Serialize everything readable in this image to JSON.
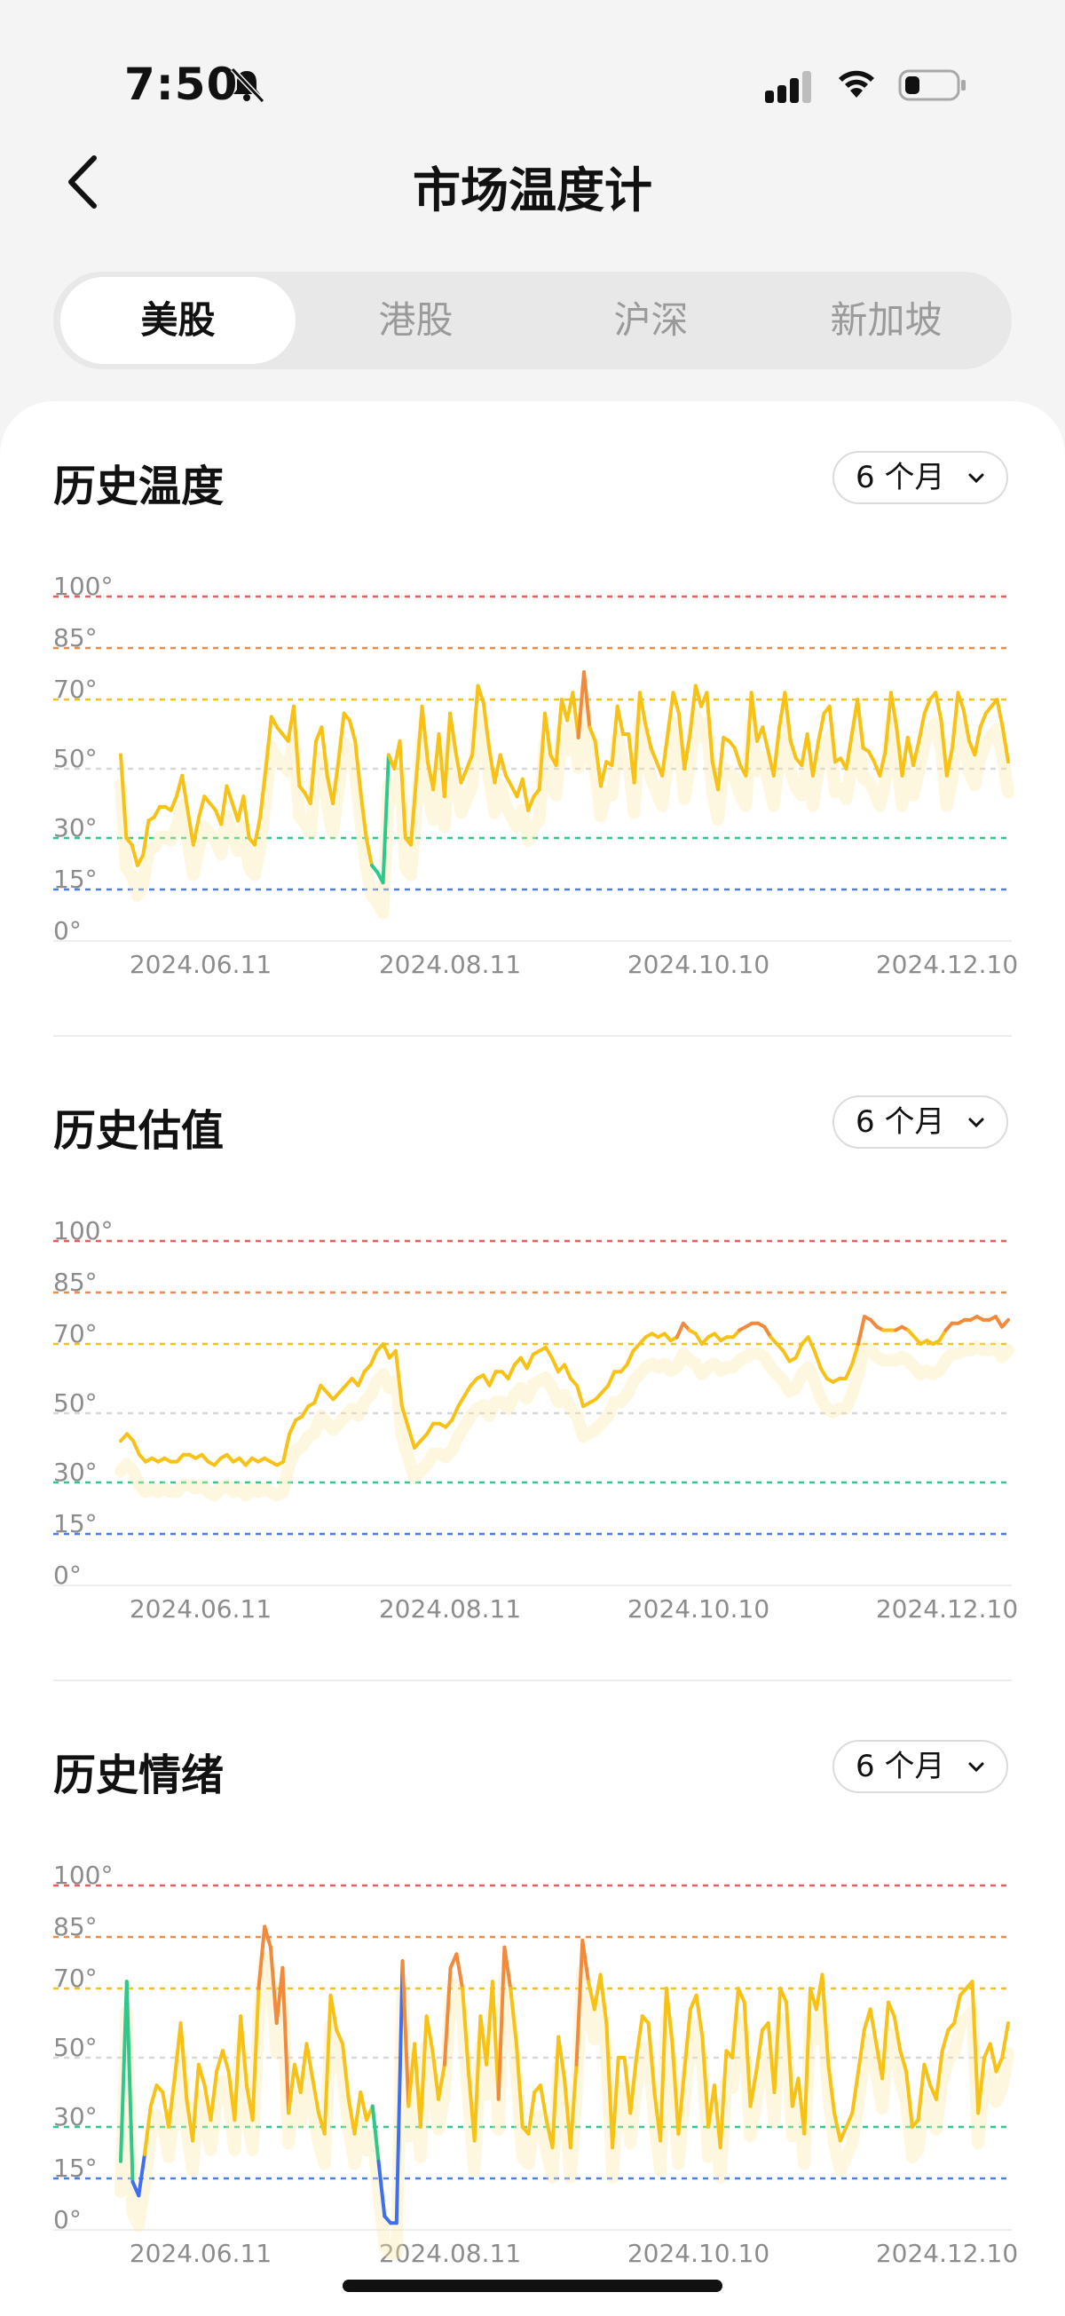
{
  "status": {
    "time": "7:50"
  },
  "nav": {
    "title": "市场温度计"
  },
  "tabs": [
    {
      "label": "美股",
      "active": true
    },
    {
      "label": "港股",
      "active": false
    },
    {
      "label": "沪深",
      "active": false
    },
    {
      "label": "新加坡",
      "active": false
    }
  ],
  "sections": [
    {
      "title": "历史温度",
      "period": "6 个月"
    },
    {
      "title": "历史估值",
      "period": "6 个月"
    },
    {
      "title": "历史情绪",
      "period": "6 个月"
    }
  ],
  "colors": {
    "level_100": "#f05a5a",
    "level_85": "#f0894a",
    "level_70": "#f2c21a",
    "level_50": "#d8d8d8",
    "level_30": "#2ec98a",
    "level_15": "#4a7cf0",
    "line_main": "#f7c215",
    "line_hot": "#f28a3c",
    "line_cold_green": "#2ec98a",
    "line_cold_blue": "#3f6ff0"
  },
  "chart_data": [
    {
      "type": "line",
      "title": "历史温度",
      "y_ticks": [
        "100°",
        "85°",
        "70°",
        "50°",
        "30°",
        "15°",
        "0°"
      ],
      "x_ticks": [
        "2024.06.11",
        "2024.08.11",
        "2024.10.10",
        "2024.12.10"
      ],
      "ylim": [
        0,
        100
      ],
      "reference_levels": [
        100,
        85,
        70,
        50,
        30,
        15
      ],
      "series": [
        {
          "values": [
            54,
            30,
            28,
            22,
            25,
            35,
            36,
            39,
            39,
            38,
            42,
            48,
            38,
            28,
            36,
            42,
            40,
            38,
            34,
            45,
            40,
            35,
            42,
            30,
            28,
            36,
            50,
            65,
            62,
            60,
            58,
            68,
            45,
            43,
            40,
            58,
            62,
            48,
            40,
            52,
            66,
            64,
            58,
            43,
            30,
            22,
            20,
            17,
            54,
            50,
            58,
            30,
            28,
            48,
            68,
            52,
            44,
            60,
            42,
            66,
            55,
            46,
            50,
            54,
            74,
            69,
            56,
            46,
            54,
            48,
            45,
            42,
            47,
            38,
            42,
            44,
            66,
            54,
            51,
            70,
            64,
            72,
            59,
            78,
            62,
            58,
            45,
            52,
            51,
            68,
            60,
            60,
            46,
            72,
            63,
            56,
            52,
            48,
            60,
            72,
            66,
            50,
            60,
            74,
            68,
            72,
            52,
            44,
            59,
            58,
            56,
            51,
            48,
            72,
            58,
            62,
            55,
            48,
            62,
            72,
            58,
            53,
            51,
            60,
            48,
            58,
            66,
            68,
            52,
            53,
            50,
            60,
            70,
            56,
            55,
            52,
            48,
            55,
            72,
            62,
            48,
            59,
            51,
            58,
            66,
            70,
            72,
            64,
            48,
            56,
            72,
            67,
            58,
            54,
            62,
            66,
            68,
            70,
            62,
            52
          ]
        }
      ]
    },
    {
      "type": "line",
      "title": "历史估值",
      "y_ticks": [
        "100°",
        "85°",
        "70°",
        "50°",
        "30°",
        "15°",
        "0°"
      ],
      "x_ticks": [
        "2024.06.11",
        "2024.08.11",
        "2024.10.10",
        "2024.12.10"
      ],
      "ylim": [
        0,
        100
      ],
      "reference_levels": [
        100,
        85,
        70,
        50,
        30,
        15
      ],
      "series": [
        {
          "values": [
            42,
            44,
            42,
            38,
            36,
            37,
            36,
            37,
            36,
            36,
            38,
            38,
            37,
            38,
            36,
            35,
            37,
            38,
            36,
            37,
            35,
            37,
            36,
            37,
            36,
            35,
            36,
            44,
            48,
            49,
            52,
            53,
            58,
            56,
            54,
            56,
            58,
            60,
            58,
            62,
            64,
            68,
            70,
            66,
            68,
            52,
            46,
            40,
            42,
            44,
            47,
            47,
            46,
            48,
            52,
            55,
            58,
            60,
            61,
            58,
            62,
            62,
            60,
            64,
            66,
            63,
            67,
            68,
            69,
            66,
            62,
            64,
            60,
            58,
            52,
            53,
            54,
            56,
            58,
            62,
            62,
            64,
            68,
            70,
            72,
            73,
            72,
            73,
            71,
            72,
            76,
            74,
            73,
            70,
            72,
            73,
            71,
            72,
            72,
            74,
            75,
            76,
            76,
            75,
            72,
            70,
            68,
            65,
            66,
            70,
            72,
            68,
            63,
            60,
            59,
            60,
            60,
            64,
            70,
            78,
            77,
            75,
            74,
            74,
            74,
            75,
            74,
            72,
            70,
            71,
            70,
            71,
            74,
            76,
            76,
            77,
            77,
            78,
            77,
            77,
            78,
            75,
            77
          ]
        }
      ]
    },
    {
      "type": "line",
      "title": "历史情绪",
      "y_ticks": [
        "100°",
        "85°",
        "70°",
        "50°",
        "30°",
        "15°",
        "0°"
      ],
      "x_ticks": [
        "2024.06.11",
        "2024.08.11",
        "2024.10.10",
        "2024.12.10"
      ],
      "ylim": [
        0,
        100
      ],
      "reference_levels": [
        100,
        85,
        70,
        50,
        30,
        15
      ],
      "series": [
        {
          "values": [
            20,
            72,
            14,
            10,
            22,
            36,
            42,
            40,
            30,
            44,
            60,
            38,
            26,
            48,
            42,
            32,
            46,
            52,
            46,
            32,
            62,
            42,
            32,
            70,
            88,
            82,
            60,
            76,
            34,
            48,
            40,
            54,
            44,
            34,
            28,
            68,
            58,
            54,
            38,
            28,
            40,
            32,
            36,
            20,
            4,
            2,
            2,
            78,
            36,
            54,
            30,
            62,
            52,
            38,
            48,
            76,
            80,
            70,
            46,
            26,
            62,
            48,
            72,
            38,
            82,
            70,
            54,
            30,
            28,
            40,
            42,
            32,
            24,
            56,
            44,
            24,
            48,
            84,
            72,
            64,
            74,
            60,
            24,
            50,
            50,
            34,
            50,
            62,
            60,
            40,
            26,
            70,
            54,
            28,
            46,
            64,
            68,
            56,
            30,
            42,
            24,
            52,
            50,
            70,
            66,
            36,
            46,
            58,
            60,
            40,
            70,
            66,
            36,
            44,
            28,
            70,
            64,
            74,
            48,
            34,
            26,
            30,
            34,
            46,
            58,
            64,
            54,
            44,
            66,
            62,
            52,
            46,
            30,
            32,
            48,
            42,
            38,
            52,
            58,
            60,
            68,
            70,
            72,
            34,
            50,
            54,
            46,
            50,
            60
          ]
        }
      ]
    }
  ]
}
